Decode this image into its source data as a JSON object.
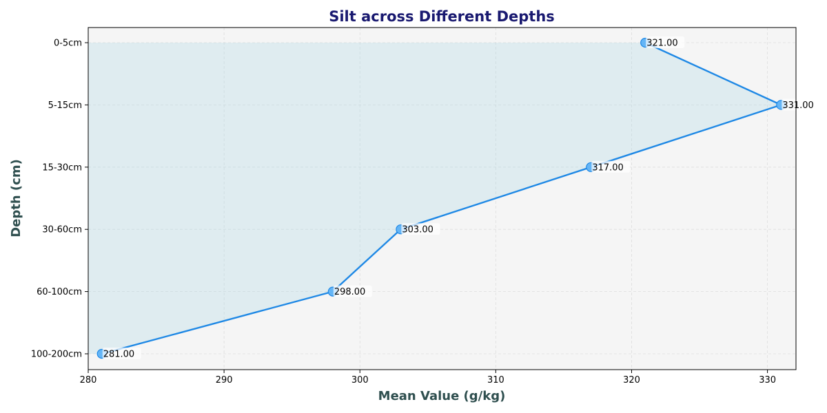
{
  "chart_data": {
    "type": "line",
    "title": "Silt across Different Depths",
    "xlabel": "Mean Value (g/kg)",
    "ylabel": "Depth (cm)",
    "categories": [
      "0-5cm",
      "5-15cm",
      "15-30cm",
      "30-60cm",
      "60-100cm",
      "100-200cm"
    ],
    "values": [
      321,
      331,
      317,
      303,
      298,
      281
    ],
    "data_labels": [
      "321.00",
      "331.00",
      "317.00",
      "303.00",
      "298.00",
      "281.00"
    ],
    "x_ticks": [
      "280",
      "290",
      "300",
      "310",
      "320",
      "330"
    ],
    "xlim": [
      280,
      332.1
    ],
    "orientation": "horizontal",
    "fill_to_left": true,
    "grid": true,
    "legend": "none",
    "colors": {
      "line": "#1e88e5",
      "marker": "#64b5f6",
      "fill": "#add8e6",
      "plot_background": "#f5f5f5",
      "title": "#191970",
      "axis_label": "#2f4f4f",
      "grid": "#d3d3d3"
    }
  }
}
